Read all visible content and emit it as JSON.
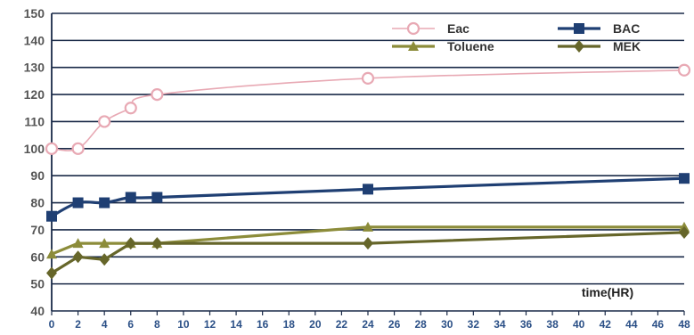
{
  "chart_data": {
    "type": "line",
    "title": "",
    "xlabel": "time(HR)",
    "ylabel": "",
    "xlim": [
      0,
      48
    ],
    "ylim": [
      40,
      150
    ],
    "x_ticks": [
      0,
      2,
      4,
      6,
      8,
      10,
      12,
      14,
      16,
      18,
      20,
      22,
      24,
      26,
      28,
      30,
      32,
      34,
      36,
      38,
      40,
      42,
      44,
      46,
      48
    ],
    "y_ticks": [
      40,
      50,
      60,
      70,
      80,
      90,
      100,
      110,
      120,
      130,
      140,
      150
    ],
    "grid": "horizontal",
    "legend_position": "top-right",
    "series": [
      {
        "name": "Eac",
        "color": "#e8a9b4",
        "marker": "circle-open",
        "smooth": true,
        "x": [
          0,
          2,
          4,
          6,
          8,
          24,
          48
        ],
        "y": [
          100,
          100,
          110,
          115,
          120,
          126,
          129
        ]
      },
      {
        "name": "BAC",
        "color": "#1f3f73",
        "marker": "square",
        "smooth": true,
        "x": [
          0,
          2,
          4,
          6,
          8,
          24,
          48
        ],
        "y": [
          75,
          80,
          80,
          82,
          82,
          85,
          89
        ]
      },
      {
        "name": "Toluene",
        "color": "#8c8c3a",
        "marker": "triangle",
        "smooth": false,
        "x": [
          0,
          2,
          4,
          6,
          8,
          24,
          48
        ],
        "y": [
          61,
          65,
          65,
          65,
          65,
          71,
          71
        ]
      },
      {
        "name": "MEK",
        "color": "#66662a",
        "marker": "diamond",
        "smooth": false,
        "x": [
          0,
          2,
          4,
          6,
          8,
          24,
          48
        ],
        "y": [
          54,
          60,
          59,
          65,
          65,
          65,
          69
        ]
      }
    ]
  }
}
